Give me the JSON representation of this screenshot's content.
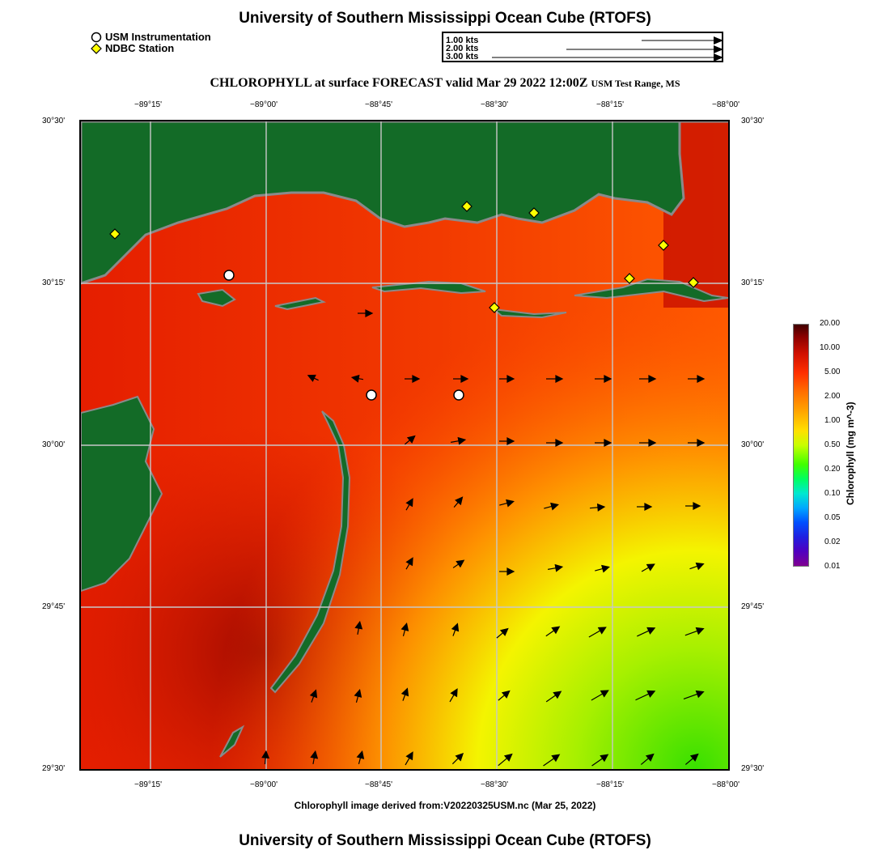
{
  "header": {
    "title": "University of Southern Mississippi Ocean Cube (RTOFS)",
    "subtitle_main": "CHLOROPHYLL at surface FORECAST valid Mar 29 2022 12:00Z",
    "subtitle_region": "USM Test Range, MS"
  },
  "symbol_legend": {
    "instrumentation": "USM Instrumentation",
    "ndbc": "NDBC Station"
  },
  "speed_legend": [
    "1.00 kts",
    "2.00 kts",
    "3.00 kts"
  ],
  "axes": {
    "top_ticks": [
      "−89°15'",
      "−89°00'",
      "−88°45'",
      "−88°30'",
      "−88°15'",
      "−88°00'"
    ],
    "bottom_ticks": [
      "−89°15'",
      "−89°00'",
      "−88°45'",
      "−88°30'",
      "−88°15'",
      "−88°00'"
    ],
    "left_ticks": [
      "30°30'",
      "30°15'",
      "30°00'",
      "29°45'",
      "29°30'"
    ],
    "right_ticks": [
      "30°30'",
      "30°15'",
      "30°00'",
      "29°45'",
      "29°30'"
    ]
  },
  "colorbar": {
    "label": "Chlorophyll (mg m^-3)",
    "values": [
      "20.00",
      "10.00",
      "5.00",
      "2.00",
      "1.00",
      "0.50",
      "0.20",
      "0.10",
      "0.05",
      "0.02",
      "0.01"
    ]
  },
  "caption": "Chlorophyll image derived from:V20220325USM.nc (Mar 25, 2022)",
  "footer_title": "University of Southern Mississippi Ocean Cube (RTOFS)",
  "colors": {
    "land": "#136b27",
    "coast_gray": "#8a8a8a",
    "grid": "#c8c8c8"
  }
}
